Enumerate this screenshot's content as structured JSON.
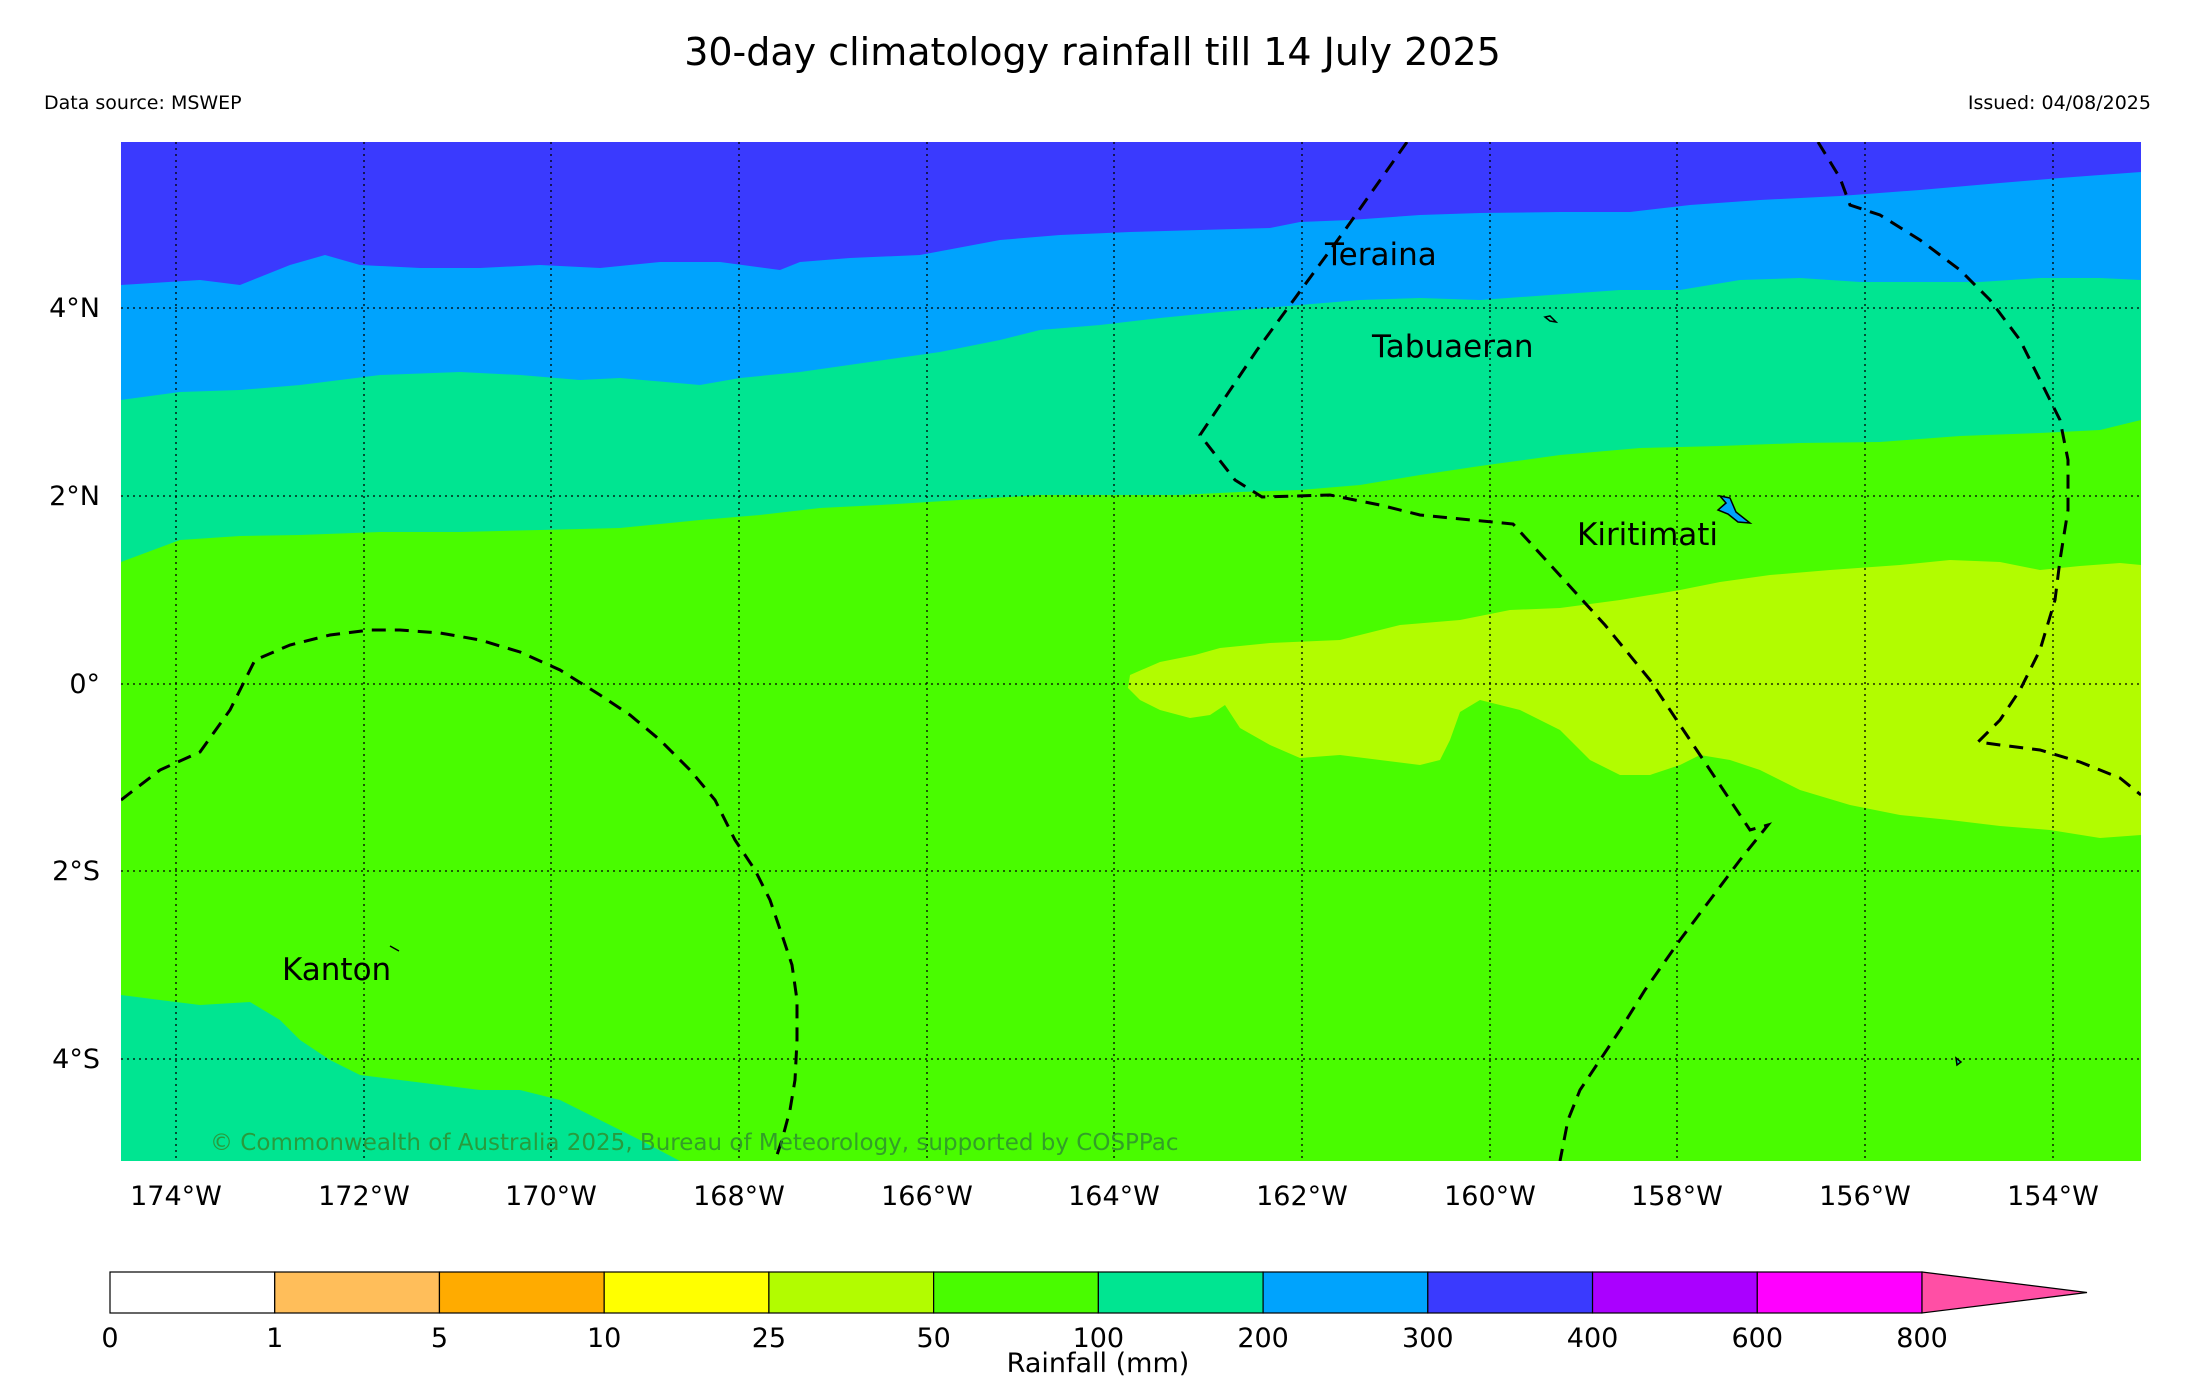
{
  "header": {
    "title": "30-day climatology rainfall till 14 July 2025",
    "data_source": "Data source: MSWEP",
    "issued": "Issued: 04/08/2025"
  },
  "map": {
    "lat_ticks": [
      "4°N",
      "2°N",
      "0°",
      "2°S",
      "4°S"
    ],
    "lon_ticks": [
      "174°W",
      "172°W",
      "170°W",
      "168°W",
      "166°W",
      "164°W",
      "162°W",
      "160°W",
      "158°W",
      "156°W",
      "154°W"
    ],
    "places": [
      "Teraina",
      "Tabuaeran",
      "Kiritimati",
      "Kanton"
    ],
    "copyright": "© Commonwealth of Australia 2025, Bureau of Meteorology, supported by COSPPac",
    "band_colors": {
      "b300_400": "#3a3afe",
      "b200_300": "#00a3fd",
      "b100_200": "#00e591",
      "b50_100": "#49fc00",
      "b25_50": "#b2fc00"
    }
  },
  "legend": {
    "title": "Rainfall (mm)",
    "ticks": [
      "0",
      "1",
      "5",
      "10",
      "25",
      "50",
      "100",
      "200",
      "300",
      "400",
      "600",
      "800"
    ],
    "colors": [
      "#ffffff",
      "#ffbe5a",
      "#ffab00",
      "#ffff00",
      "#b2fc00",
      "#49fc00",
      "#00e591",
      "#00a3fd",
      "#3a3afe",
      "#aa00ff",
      "#ff00ff"
    ],
    "extend_color": "#ff4fa5"
  }
}
